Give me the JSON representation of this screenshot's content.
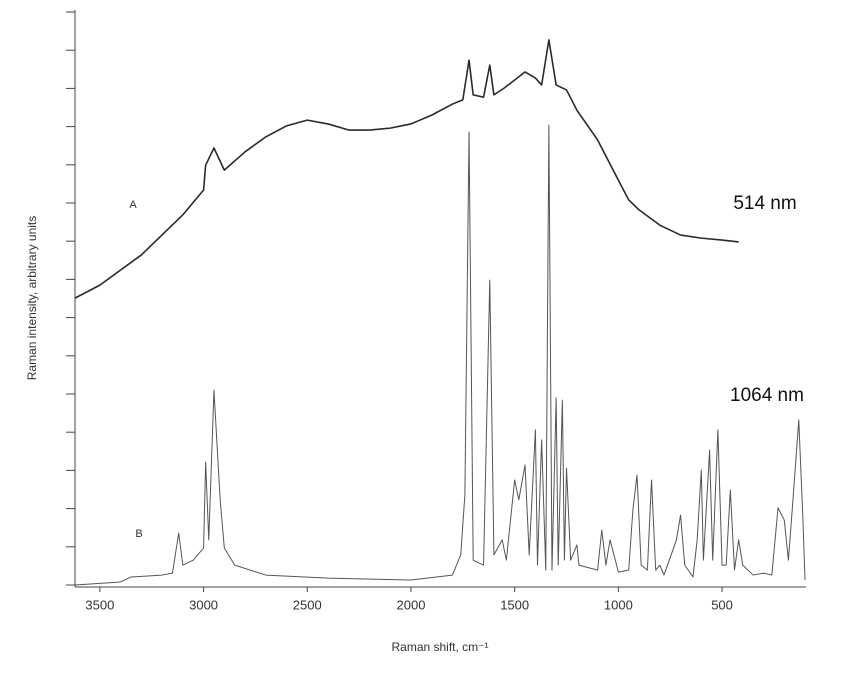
{
  "chart_data": {
    "type": "line",
    "xlabel": "Raman shift, cm⁻¹",
    "ylabel": "Raman intensity, arbitrary units",
    "xlim": [
      3620,
      100
    ],
    "xticks": [
      3500,
      3000,
      2500,
      2000,
      1500,
      1000,
      500
    ],
    "ylim": [
      0,
      15
    ],
    "yticks": [
      0,
      1,
      2,
      3,
      4,
      5,
      6,
      7,
      8,
      9,
      10,
      11,
      12,
      13,
      14,
      15
    ],
    "series": [
      {
        "name": "A",
        "excitation": "514 nm",
        "color": "#2a2a2a",
        "x": [
          3620,
          3500,
          3300,
          3100,
          3000,
          2990,
          2950,
          2900,
          2800,
          2700,
          2600,
          2500,
          2400,
          2300,
          2200,
          2100,
          2000,
          1900,
          1800,
          1750,
          1720,
          1700,
          1650,
          1620,
          1600,
          1550,
          1500,
          1450,
          1400,
          1370,
          1335,
          1300,
          1250,
          1200,
          1100,
          1000,
          950,
          900,
          800,
          700,
          600,
          500,
          420
        ],
        "values": [
          7.51,
          7.85,
          8.64,
          9.69,
          10.34,
          10.99,
          11.44,
          10.86,
          11.34,
          11.73,
          12.02,
          12.17,
          12.07,
          11.91,
          11.91,
          11.96,
          12.07,
          12.3,
          12.59,
          12.7,
          13.74,
          12.83,
          12.77,
          13.61,
          12.83,
          13.01,
          13.22,
          13.43,
          13.27,
          13.09,
          14.27,
          13.09,
          12.96,
          12.43,
          11.65,
          10.6,
          10.08,
          9.82,
          9.42,
          9.16,
          9.08,
          9.03,
          8.98
        ]
      },
      {
        "name": "B",
        "excitation": "1064 nm",
        "color": "#555555",
        "x": [
          3620,
          3400,
          3350,
          3200,
          3150,
          3120,
          3100,
          3050,
          3000,
          2990,
          2975,
          2950,
          2920,
          2900,
          2850,
          2700,
          2400,
          2000,
          1800,
          1760,
          1740,
          1720,
          1700,
          1650,
          1620,
          1600,
          1560,
          1540,
          1500,
          1480,
          1450,
          1430,
          1400,
          1390,
          1370,
          1350,
          1335,
          1320,
          1300,
          1290,
          1270,
          1260,
          1250,
          1230,
          1200,
          1190,
          1100,
          1080,
          1060,
          1040,
          1000,
          950,
          930,
          910,
          890,
          860,
          840,
          820,
          800,
          780,
          720,
          700,
          680,
          640,
          620,
          600,
          590,
          560,
          545,
          520,
          500,
          480,
          460,
          440,
          420,
          400,
          350,
          300,
          260,
          230,
          200,
          180,
          160,
          130,
          110,
          100
        ],
        "values": [
          0,
          0.08,
          0.21,
          0.26,
          0.31,
          1.36,
          0.52,
          0.65,
          0.97,
          3.22,
          1.18,
          5.1,
          2.23,
          0.97,
          0.52,
          0.26,
          0.18,
          0.13,
          0.26,
          0.79,
          2.36,
          11.86,
          0.65,
          0.52,
          7.98,
          0.79,
          1.18,
          0.65,
          2.75,
          2.23,
          3.14,
          0.79,
          4.06,
          0.52,
          3.8,
          0.39,
          12.04,
          0.39,
          4.9,
          0.52,
          4.84,
          0.65,
          3.06,
          0.65,
          1.05,
          0.52,
          0.39,
          1.44,
          0.52,
          1.18,
          0.34,
          0.39,
          1.96,
          2.88,
          0.52,
          0.39,
          2.75,
          0.39,
          0.52,
          0.26,
          1.18,
          1.83,
          0.52,
          0.21,
          1.18,
          3.01,
          0.65,
          3.53,
          0.65,
          4.06,
          0.52,
          0.52,
          2.49,
          0.39,
          1.18,
          0.52,
          0.26,
          0.31,
          0.26,
          2.02,
          1.7,
          0.65,
          2.09,
          4.32,
          1.7,
          0.13
        ]
      }
    ]
  }
}
